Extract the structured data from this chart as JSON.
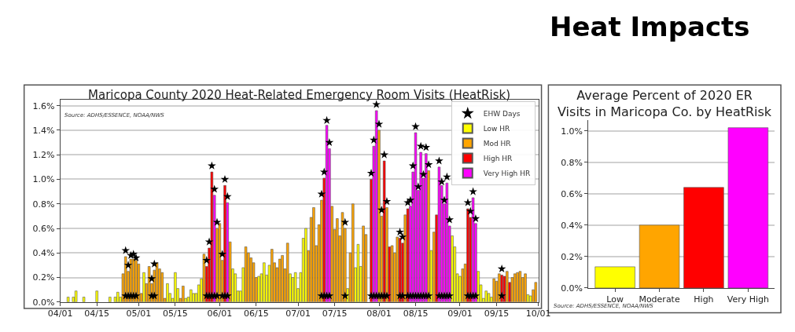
{
  "chart_data": [
    {
      "type": "bar",
      "title": "Maricopa County 2020 Heat-Related Emergency Room Visits (HeatRisk)",
      "annotations": [
        "Source: ADHS/ESSENCE, NOAA/NWS"
      ],
      "xlim": [
        "2020-04-01",
        "2020-10-01"
      ],
      "xticks": [
        {
          "value": "2020-04-01",
          "label": "04/01"
        },
        {
          "value": "2020-04-15",
          "label": "04/15"
        },
        {
          "value": "2020-05-01",
          "label": "05/01"
        },
        {
          "value": "2020-05-15",
          "label": "05/15"
        },
        {
          "value": "2020-06-01",
          "label": "06/01"
        },
        {
          "value": "2020-06-15",
          "label": "06/15"
        },
        {
          "value": "2020-07-01",
          "label": "07/01"
        },
        {
          "value": "2020-07-15",
          "label": "07/15"
        },
        {
          "value": "2020-08-01",
          "label": "08/01"
        },
        {
          "value": "2020-08-15",
          "label": "08/15"
        },
        {
          "value": "2020-09-01",
          "label": "09/01"
        },
        {
          "value": "2020-09-15",
          "label": "09/15"
        },
        {
          "value": "2020-10-01",
          "label": "10/01"
        }
      ],
      "ylim": [
        0,
        1.65
      ],
      "yticks": [
        {
          "value": 0,
          "label": "0.0%"
        },
        {
          "value": 0.2,
          "label": "0.2%"
        },
        {
          "value": 0.4,
          "label": "0.4%"
        },
        {
          "value": 0.6,
          "label": "0.6%"
        },
        {
          "value": 0.8,
          "label": "0.8%"
        },
        {
          "value": 1.0,
          "label": "1.0%"
        },
        {
          "value": 1.2,
          "label": "1.2%"
        },
        {
          "value": 1.4,
          "label": "1.4%"
        },
        {
          "value": 1.6,
          "label": "1.6%"
        }
      ],
      "grid": "y",
      "legend": "top right",
      "series": [
        {
          "name": "EHW Days",
          "type": "scatter",
          "marker": "star",
          "color": "#000000",
          "x": [
            "2020-04-26",
            "2020-04-27",
            "2020-04-28",
            "2020-04-29",
            "2020-04-30",
            "2020-05-06",
            "2020-05-07",
            "2020-05-27",
            "2020-05-28",
            "2020-05-29",
            "2020-05-30",
            "2020-05-31",
            "2020-06-02",
            "2020-06-03",
            "2020-06-04",
            "2020-07-10",
            "2020-07-11",
            "2020-07-12",
            "2020-07-13",
            "2020-07-19",
            "2020-07-29",
            "2020-07-30",
            "2020-07-31",
            "2020-08-01",
            "2020-08-02",
            "2020-08-03",
            "2020-08-04",
            "2020-08-09",
            "2020-08-10",
            "2020-08-12",
            "2020-08-13",
            "2020-08-14",
            "2020-08-15",
            "2020-08-16",
            "2020-08-17",
            "2020-08-18",
            "2020-08-19",
            "2020-08-20",
            "2020-08-24",
            "2020-08-25",
            "2020-08-26",
            "2020-08-27",
            "2020-08-28",
            "2020-09-04",
            "2020-09-05",
            "2020-09-06",
            "2020-09-07",
            "2020-09-17"
          ],
          "values": [
            0.42,
            0.3,
            0.38,
            0.39,
            0.36,
            0.19,
            0.31,
            0.34,
            0.49,
            1.11,
            0.92,
            0.65,
            0.39,
            1.0,
            0.86,
            0.88,
            1.06,
            1.48,
            1.3,
            0.65,
            1.05,
            1.32,
            1.61,
            1.45,
            0.75,
            1.2,
            0.82,
            0.57,
            0.53,
            0.81,
            0.83,
            1.11,
            1.43,
            0.94,
            1.27,
            1.04,
            1.26,
            1.12,
            1.15,
            0.98,
            0.83,
            1.02,
            0.67,
            0.81,
            0.74,
            0.9,
            0.68,
            0.27
          ]
        },
        {
          "type": "scatter",
          "marker": "star",
          "color": "#000000",
          "x": [
            "2020-04-26",
            "2020-04-27",
            "2020-04-28",
            "2020-04-29",
            "2020-04-30",
            "2020-05-06",
            "2020-05-07",
            "2020-05-27",
            "2020-05-28",
            "2020-05-29",
            "2020-05-30",
            "2020-05-31",
            "2020-06-02",
            "2020-06-03",
            "2020-06-04",
            "2020-07-10",
            "2020-07-11",
            "2020-07-12",
            "2020-07-13",
            "2020-07-19",
            "2020-07-29",
            "2020-07-30",
            "2020-07-31",
            "2020-08-01",
            "2020-08-02",
            "2020-08-03",
            "2020-08-04",
            "2020-08-09",
            "2020-08-10",
            "2020-08-12",
            "2020-08-13",
            "2020-08-14",
            "2020-08-15",
            "2020-08-16",
            "2020-08-17",
            "2020-08-18",
            "2020-08-19",
            "2020-08-20",
            "2020-08-24",
            "2020-08-25",
            "2020-08-26",
            "2020-08-27",
            "2020-08-28",
            "2020-09-04",
            "2020-09-05",
            "2020-09-06",
            "2020-09-07",
            "2020-09-17"
          ],
          "values": [
            0.05,
            0.05,
            0.05,
            0.05,
            0.05,
            0.05,
            0.05,
            0.05,
            0.05,
            0.05,
            0.05,
            0.05,
            0.05,
            0.05,
            0.05,
            0.05,
            0.05,
            0.05,
            0.05,
            0.05,
            0.05,
            0.05,
            0.05,
            0.05,
            0.05,
            0.05,
            0.05,
            0.05,
            0.05,
            0.05,
            0.05,
            0.05,
            0.05,
            0.05,
            0.05,
            0.05,
            0.05,
            0.05,
            0.05,
            0.05,
            0.05,
            0.05,
            0.05,
            0.05,
            0.05,
            0.05,
            0.05,
            0.05
          ]
        },
        {
          "name": "Low HR",
          "color": "#ffff00",
          "x": [
            "2020-04-04",
            "2020-04-06",
            "2020-04-07",
            "2020-04-10",
            "2020-04-15",
            "2020-04-20",
            "2020-04-22",
            "2020-04-23",
            "2020-04-24",
            "2020-05-03",
            "2020-05-12",
            "2020-05-13",
            "2020-05-14",
            "2020-05-15",
            "2020-05-16",
            "2020-05-19",
            "2020-05-20",
            "2020-05-21",
            "2020-05-22",
            "2020-05-23",
            "2020-05-24",
            "2020-05-25",
            "2020-06-06",
            "2020-06-07",
            "2020-06-08",
            "2020-06-09",
            "2020-06-10",
            "2020-06-16",
            "2020-06-17",
            "2020-06-18",
            "2020-06-19",
            "2020-06-20",
            "2020-06-28",
            "2020-06-29",
            "2020-06-30",
            "2020-07-01",
            "2020-07-02",
            "2020-07-03",
            "2020-07-04",
            "2020-07-20",
            "2020-07-23",
            "2020-07-24",
            "2020-07-25",
            "2020-08-21",
            "2020-08-29",
            "2020-08-30",
            "2020-08-31",
            "2020-09-01",
            "2020-09-08",
            "2020-09-09",
            "2020-09-10",
            "2020-09-11",
            "2020-09-12",
            "2020-09-13",
            "2020-09-27",
            "2020-09-28"
          ],
          "values": [
            0.04,
            0.04,
            0.09,
            0.04,
            0.09,
            0.04,
            0.04,
            0.08,
            0.04,
            0.24,
            0.15,
            0.07,
            0.03,
            0.24,
            0.11,
            0.03,
            0.04,
            0.1,
            0.07,
            0.07,
            0.14,
            0.19,
            0.27,
            0.23,
            0.09,
            0.09,
            0.28,
            0.21,
            0.23,
            0.32,
            0.22,
            0.3,
            0.23,
            0.2,
            0.24,
            0.11,
            0.24,
            0.52,
            0.6,
            0.11,
            0.28,
            0.47,
            0.29,
            0.42,
            0.54,
            0.45,
            0.23,
            0.21,
            0.25,
            0.14,
            0.03,
            0.09,
            0.07,
            0.04,
            0.06,
            0.05
          ]
        },
        {
          "name": "Mod HR",
          "color": "#ffa500",
          "x": [
            "2020-04-25",
            "2020-04-26",
            "2020-04-27",
            "2020-04-28",
            "2020-04-29",
            "2020-04-30",
            "2020-05-01",
            "2020-05-02",
            "2020-05-04",
            "2020-05-05",
            "2020-05-06",
            "2020-05-07",
            "2020-05-08",
            "2020-05-09",
            "2020-05-10",
            "2020-05-11",
            "2020-05-17",
            "2020-05-18",
            "2020-05-26",
            "2020-05-31",
            "2020-06-01",
            "2020-06-02",
            "2020-06-05",
            "2020-06-11",
            "2020-06-12",
            "2020-06-13",
            "2020-06-14",
            "2020-06-15",
            "2020-06-21",
            "2020-06-22",
            "2020-06-23",
            "2020-06-24",
            "2020-06-25",
            "2020-06-26",
            "2020-06-27",
            "2020-07-05",
            "2020-07-06",
            "2020-07-07",
            "2020-07-08",
            "2020-07-09",
            "2020-07-10",
            "2020-07-14",
            "2020-07-15",
            "2020-07-16",
            "2020-07-17",
            "2020-07-18",
            "2020-07-19",
            "2020-07-21",
            "2020-07-22",
            "2020-07-26",
            "2020-07-27",
            "2020-08-01",
            "2020-08-02",
            "2020-08-04",
            "2020-08-06",
            "2020-08-07",
            "2020-08-08",
            "2020-08-11",
            "2020-08-20",
            "2020-08-22",
            "2020-09-02",
            "2020-09-03",
            "2020-09-14",
            "2020-09-15",
            "2020-09-16",
            "2020-09-19",
            "2020-09-21",
            "2020-09-22",
            "2020-09-23",
            "2020-09-24",
            "2020-09-25",
            "2020-09-26",
            "2020-09-29",
            "2020-09-30"
          ],
          "values": [
            0.23,
            0.37,
            0.25,
            0.35,
            0.35,
            0.34,
            0.31,
            0.07,
            0.15,
            0.29,
            0.15,
            0.26,
            0.32,
            0.27,
            0.24,
            0.03,
            0.03,
            0.13,
            0.39,
            0.6,
            0.64,
            0.34,
            0.49,
            0.45,
            0.4,
            0.36,
            0.32,
            0.2,
            0.43,
            0.32,
            0.28,
            0.35,
            0.38,
            0.27,
            0.48,
            0.42,
            0.69,
            0.77,
            0.46,
            0.63,
            0.83,
            0.78,
            0.59,
            0.68,
            0.54,
            0.73,
            0.6,
            0.4,
            0.8,
            0.62,
            0.55,
            1.4,
            0.7,
            0.77,
            0.46,
            0.4,
            0.53,
            0.71,
            1.07,
            0.57,
            0.27,
            0.31,
            0.19,
            0.17,
            0.23,
            0.25,
            0.2,
            0.23,
            0.24,
            0.25,
            0.2,
            0.23,
            0.1,
            0.16
          ]
        },
        {
          "name": "High HR",
          "color": "#ff0000",
          "x": [
            "2020-05-27",
            "2020-05-28",
            "2020-05-29",
            "2020-06-03",
            "2020-07-11",
            "2020-07-29",
            "2020-08-03",
            "2020-08-05",
            "2020-08-09",
            "2020-08-10",
            "2020-08-12",
            "2020-08-23",
            "2020-09-04",
            "2020-09-05",
            "2020-09-17",
            "2020-09-18",
            "2020-09-20"
          ],
          "values": [
            0.29,
            0.44,
            1.06,
            0.95,
            1.01,
            1.0,
            1.15,
            0.45,
            0.52,
            0.48,
            0.76,
            0.71,
            0.76,
            0.69,
            0.22,
            0.21,
            0.16
          ]
        },
        {
          "name": "Very High HR",
          "color": "#ff00ff",
          "x": [
            "2020-05-30",
            "2020-06-04",
            "2020-07-12",
            "2020-07-13",
            "2020-07-30",
            "2020-07-31",
            "2020-08-13",
            "2020-08-14",
            "2020-08-15",
            "2020-08-16",
            "2020-08-17",
            "2020-08-18",
            "2020-08-19",
            "2020-08-24",
            "2020-08-25",
            "2020-08-26",
            "2020-08-27",
            "2020-08-28",
            "2020-09-06",
            "2020-09-07"
          ],
          "values": [
            0.87,
            0.81,
            1.44,
            1.25,
            1.27,
            1.56,
            0.78,
            1.06,
            1.38,
            0.91,
            1.22,
            1.01,
            1.21,
            1.1,
            0.95,
            0.8,
            0.97,
            0.62,
            0.85,
            0.64
          ]
        }
      ]
    },
    {
      "type": "bar",
      "title": "Average Percent of 2020 ER\nVisits in Maricopa Co. by HeatRisk",
      "annotations": [
        "Source: ADHS/ESSENCE, NOAA/NWS",
        "Heat Impacts"
      ],
      "categories": [
        "Low",
        "Moderate",
        "High",
        "Very High"
      ],
      "values": [
        0.135,
        0.4,
        0.64,
        1.02
      ],
      "colors": [
        "#ffff00",
        "#ffa500",
        "#ff0000",
        "#ff00ff"
      ],
      "ylim": [
        0,
        1.07
      ],
      "yticks": [
        {
          "value": 0,
          "label": "0.0%"
        },
        {
          "value": 0.2,
          "label": "0.2%"
        },
        {
          "value": 0.4,
          "label": "0.4%"
        },
        {
          "value": 0.6,
          "label": "0.6%"
        },
        {
          "value": 0.8,
          "label": "0.8%"
        },
        {
          "value": 1.0,
          "label": "1.0%"
        }
      ],
      "grid": "y"
    }
  ]
}
